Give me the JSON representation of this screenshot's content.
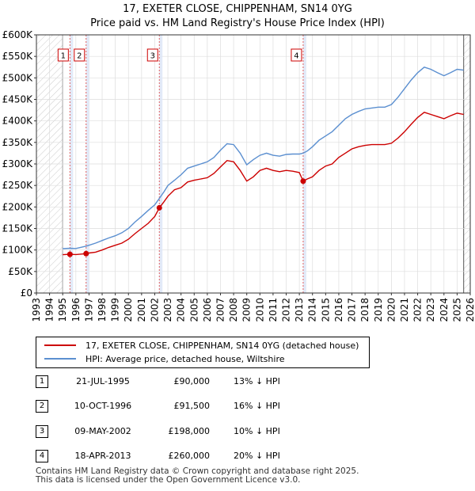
{
  "title_line1": "17, EXETER CLOSE, CHIPPENHAM, SN14 0YG",
  "title_line2": "Price paid vs. HM Land Registry's House Price Index (HPI)",
  "chart_data": {
    "type": "line",
    "x_ticks": [
      "1993",
      "1994",
      "1995",
      "1996",
      "1997",
      "1998",
      "1999",
      "2000",
      "2001",
      "2002",
      "2003",
      "2004",
      "2005",
      "2006",
      "2007",
      "2008",
      "2009",
      "2010",
      "2011",
      "2012",
      "2013",
      "2014",
      "2015",
      "2016",
      "2017",
      "2018",
      "2019",
      "2020",
      "2021",
      "2022",
      "2023",
      "2024",
      "2025",
      "2026"
    ],
    "y_ticks": [
      "£0",
      "£50K",
      "£100K",
      "£150K",
      "£200K",
      "£250K",
      "£300K",
      "£350K",
      "£400K",
      "£450K",
      "£500K",
      "£550K",
      "£600K"
    ],
    "xlim": [
      1993,
      2026
    ],
    "ylim": [
      0,
      600000
    ],
    "data_range": [
      1995.0,
      2025.5
    ],
    "series": [
      {
        "name": "17, EXETER CLOSE, CHIPPENHAM, SN14 0YG (detached house)",
        "color": "#cc0000",
        "points": [
          [
            1995.0,
            89000
          ],
          [
            1995.55,
            90000
          ],
          [
            1996.0,
            89500
          ],
          [
            1996.78,
            91500
          ],
          [
            1997.0,
            93000
          ],
          [
            1997.5,
            95000
          ],
          [
            1998.0,
            100000
          ],
          [
            1998.5,
            106000
          ],
          [
            1999.0,
            111000
          ],
          [
            1999.5,
            116000
          ],
          [
            2000.0,
            125000
          ],
          [
            2000.5,
            138000
          ],
          [
            2001.0,
            150000
          ],
          [
            2001.5,
            162000
          ],
          [
            2002.0,
            178000
          ],
          [
            2002.35,
            198000
          ],
          [
            2002.7,
            212000
          ],
          [
            2003.0,
            225000
          ],
          [
            2003.5,
            240000
          ],
          [
            2004.0,
            245000
          ],
          [
            2004.5,
            258000
          ],
          [
            2005.0,
            262000
          ],
          [
            2005.5,
            265000
          ],
          [
            2006.0,
            268000
          ],
          [
            2006.5,
            278000
          ],
          [
            2007.0,
            293000
          ],
          [
            2007.5,
            308000
          ],
          [
            2008.0,
            305000
          ],
          [
            2008.5,
            285000
          ],
          [
            2009.0,
            260000
          ],
          [
            2009.5,
            270000
          ],
          [
            2010.0,
            285000
          ],
          [
            2010.5,
            290000
          ],
          [
            2011.0,
            285000
          ],
          [
            2011.5,
            282000
          ],
          [
            2012.0,
            285000
          ],
          [
            2012.5,
            283000
          ],
          [
            2013.0,
            280000
          ],
          [
            2013.29,
            260000
          ],
          [
            2013.6,
            265000
          ],
          [
            2014.0,
            270000
          ],
          [
            2014.5,
            285000
          ],
          [
            2015.0,
            295000
          ],
          [
            2015.5,
            300000
          ],
          [
            2016.0,
            315000
          ],
          [
            2016.5,
            325000
          ],
          [
            2017.0,
            335000
          ],
          [
            2017.5,
            340000
          ],
          [
            2018.0,
            343000
          ],
          [
            2018.5,
            345000
          ],
          [
            2019.0,
            345000
          ],
          [
            2019.5,
            345000
          ],
          [
            2020.0,
            348000
          ],
          [
            2020.5,
            360000
          ],
          [
            2021.0,
            375000
          ],
          [
            2021.5,
            392000
          ],
          [
            2022.0,
            408000
          ],
          [
            2022.5,
            420000
          ],
          [
            2023.0,
            415000
          ],
          [
            2023.5,
            410000
          ],
          [
            2024.0,
            405000
          ],
          [
            2024.5,
            412000
          ],
          [
            2025.0,
            418000
          ],
          [
            2025.5,
            415000
          ]
        ]
      },
      {
        "name": "HPI: Average price, detached house, Wiltshire",
        "color": "#5b8fd0",
        "points": [
          [
            1995.0,
            103000
          ],
          [
            1995.55,
            104000
          ],
          [
            1996.0,
            103500
          ],
          [
            1996.78,
            109000
          ],
          [
            1997.0,
            111000
          ],
          [
            1997.5,
            116000
          ],
          [
            1998.0,
            122000
          ],
          [
            1998.5,
            128000
          ],
          [
            1999.0,
            133000
          ],
          [
            1999.5,
            140000
          ],
          [
            2000.0,
            150000
          ],
          [
            2000.5,
            165000
          ],
          [
            2001.0,
            178000
          ],
          [
            2001.5,
            192000
          ],
          [
            2002.0,
            205000
          ],
          [
            2002.35,
            220000
          ],
          [
            2002.7,
            235000
          ],
          [
            2003.0,
            250000
          ],
          [
            2003.5,
            262000
          ],
          [
            2004.0,
            275000
          ],
          [
            2004.5,
            290000
          ],
          [
            2005.0,
            295000
          ],
          [
            2005.5,
            300000
          ],
          [
            2006.0,
            305000
          ],
          [
            2006.5,
            315000
          ],
          [
            2007.0,
            332000
          ],
          [
            2007.5,
            347000
          ],
          [
            2008.0,
            345000
          ],
          [
            2008.5,
            325000
          ],
          [
            2009.0,
            298000
          ],
          [
            2009.5,
            310000
          ],
          [
            2010.0,
            320000
          ],
          [
            2010.5,
            325000
          ],
          [
            2011.0,
            320000
          ],
          [
            2011.5,
            318000
          ],
          [
            2012.0,
            322000
          ],
          [
            2012.5,
            323000
          ],
          [
            2013.0,
            323000
          ],
          [
            2013.29,
            325000
          ],
          [
            2013.6,
            330000
          ],
          [
            2014.0,
            340000
          ],
          [
            2014.5,
            355000
          ],
          [
            2015.0,
            365000
          ],
          [
            2015.5,
            375000
          ],
          [
            2016.0,
            390000
          ],
          [
            2016.5,
            405000
          ],
          [
            2017.0,
            415000
          ],
          [
            2017.5,
            422000
          ],
          [
            2018.0,
            428000
          ],
          [
            2018.5,
            430000
          ],
          [
            2019.0,
            432000
          ],
          [
            2019.5,
            432000
          ],
          [
            2020.0,
            438000
          ],
          [
            2020.5,
            455000
          ],
          [
            2021.0,
            475000
          ],
          [
            2021.5,
            495000
          ],
          [
            2022.0,
            512000
          ],
          [
            2022.5,
            525000
          ],
          [
            2023.0,
            520000
          ],
          [
            2023.5,
            512000
          ],
          [
            2024.0,
            505000
          ],
          [
            2024.5,
            512000
          ],
          [
            2025.0,
            520000
          ],
          [
            2025.5,
            518000
          ]
        ]
      }
    ],
    "sales": [
      {
        "num": "1",
        "date": "21-JUL-1995",
        "x": 1995.55,
        "price_value": 90000,
        "price": "£90,000",
        "hpi": "13% ↓ HPI"
      },
      {
        "num": "2",
        "date": "10-OCT-1996",
        "x": 1996.78,
        "price_value": 91500,
        "price": "£91,500",
        "hpi": "16% ↓ HPI"
      },
      {
        "num": "3",
        "date": "09-MAY-2002",
        "x": 2002.35,
        "price_value": 198000,
        "price": "£198,000",
        "hpi": "10% ↓ HPI"
      },
      {
        "num": "4",
        "date": "18-APR-2013",
        "x": 2013.29,
        "price_value": 260000,
        "price": "£260,000",
        "hpi": "20% ↓ HPI"
      }
    ]
  },
  "legend": {
    "property_label": "17, EXETER CLOSE, CHIPPENHAM, SN14 0YG (detached house)",
    "hpi_label": "HPI: Average price, detached house, Wiltshire"
  },
  "footer": {
    "line1": "Contains HM Land Registry data © Crown copyright and database right 2025.",
    "line2": "This data is licensed under the Open Government Licence v3.0."
  },
  "colors": {
    "property": "#cc0000",
    "hpi": "#5b8fd0",
    "sale_band": "#dfe8f7",
    "vline": "#e06060",
    "grid": "#dddddd",
    "hatch": "#cccccc"
  }
}
